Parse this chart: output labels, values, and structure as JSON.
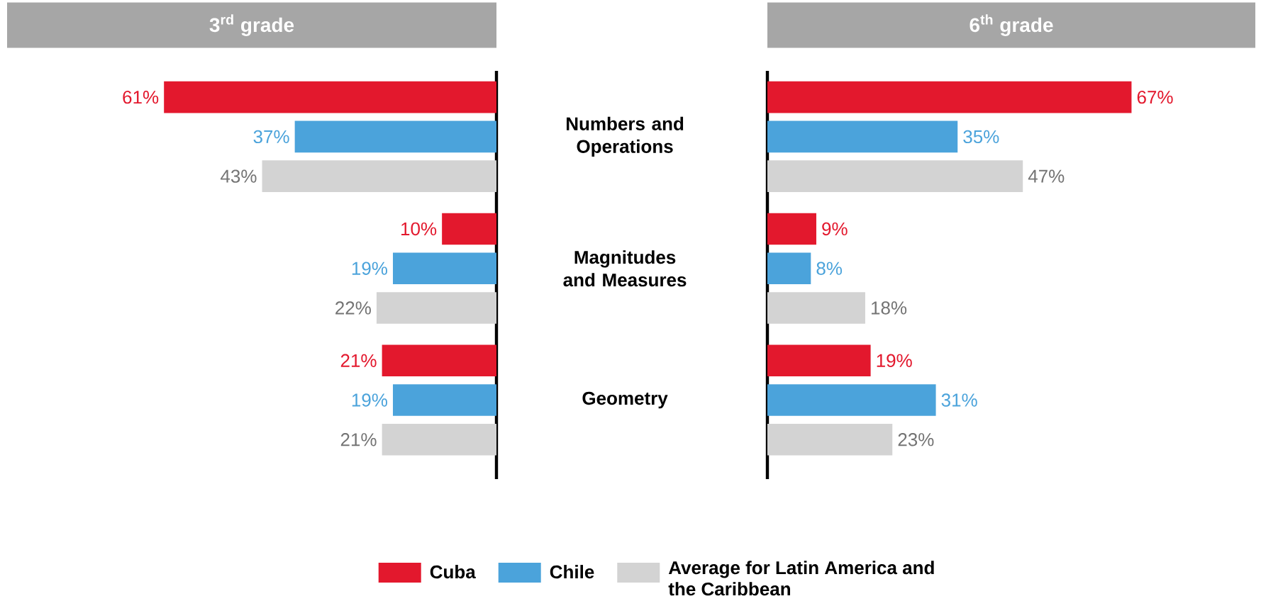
{
  "chart_data": [
    {
      "type": "bar",
      "orientation": "horizontal",
      "title": "3$^{rd}$ grade",
      "categories": [
        "Numbers and Operations",
        "Magnitudes and Measures",
        "Geometry"
      ],
      "tick_labels": "y",
      "series": [
        {
          "color": "#e3182d",
          "values": [
            61,
            10,
            21
          ],
          "value_labels": [
            "61%",
            "10%",
            "21%"
          ]
        },
        {
          "color": "#4ba3db",
          "values": [
            37,
            19,
            19
          ],
          "value_labels": [
            "37%",
            "19%",
            "19%"
          ]
        },
        {
          "color": "#d3d3d3",
          "values": [
            43,
            22,
            21
          ],
          "value_labels": [
            "43%",
            "22%",
            "21%"
          ]
        }
      ]
    },
    {
      "type": "bar",
      "orientation": "horizontal",
      "title": "6$^{th}$ grade",
      "categories": [
        null,
        null,
        null
      ],
      "tick_labels": false,
      "legend": "bottom",
      "series": [
        {
          "name": "Cuba",
          "color": "#e3182d",
          "values": [
            67,
            9,
            19
          ],
          "value_labels": [
            "67%",
            "9%",
            "19%"
          ]
        },
        {
          "name": "Chile",
          "color": "#4ba3db",
          "values": [
            35,
            8,
            31
          ],
          "value_labels": [
            "35%",
            "8%",
            "31%"
          ]
        },
        {
          "name": "Average for Latin America and the Caribbean",
          "color": "#d3d3d3",
          "values": [
            47,
            18,
            23
          ],
          "value_labels": [
            "47%",
            "18%",
            "23%"
          ]
        }
      ]
    }
  ]
}
